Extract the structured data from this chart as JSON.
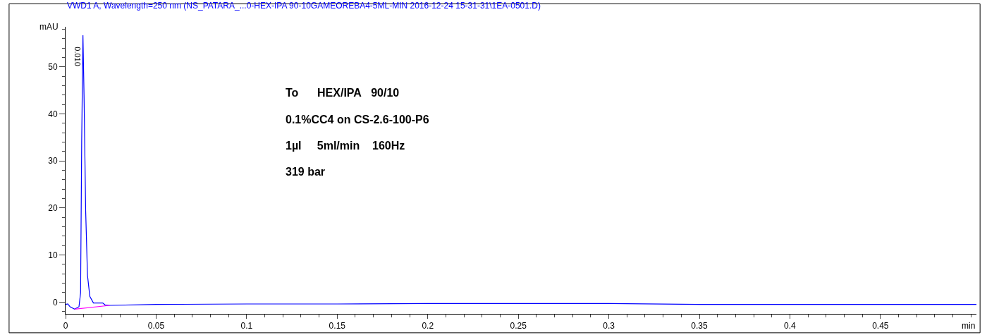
{
  "chart_data": {
    "type": "line",
    "title": "VWD1 A, Wavelength=250 nm (NS_PATARA_...0-HEX-IPA 90-10GAMEOREBA4-5ML-MIN 2016-12-24 15-31-31\\1EA-0501.D)",
    "xlabel": "min",
    "ylabel": "mAU",
    "series": [
      {
        "color": "#0000ff",
        "x": [
          0,
          0.0012,
          0.0025,
          0.005,
          0.0074,
          0.0083,
          0.0089,
          0.0096,
          0.0102,
          0.0111,
          0.0121,
          0.0134,
          0.0154,
          0.0193,
          0.0205,
          0.0218,
          0.0244,
          0.05,
          0.1,
          0.15,
          0.2,
          0.25,
          0.3,
          0.35,
          0.4,
          0.45,
          0.503
        ],
        "values": [
          -0.5,
          -0.4,
          -1,
          -1.5,
          -1,
          2,
          34,
          56.7,
          44,
          19.4,
          5.7,
          1.2,
          -0.2,
          -0.2,
          -0.2,
          -0.6,
          -0.7,
          -0.5,
          -0.4,
          -0.4,
          -0.3,
          -0.3,
          -0.3,
          -0.5,
          -0.5,
          -0.5,
          -0.5
        ]
      },
      {
        "color": "#ff00ff",
        "x": [
          0.005,
          0.0244
        ],
        "values": [
          -1.5,
          -0.7
        ]
      }
    ],
    "annotations": [
      "To      HEX/IPA   90/10",
      "0.1%CC4 on CS-2.6-100-P6",
      "1µl     5ml/min    160Hz",
      "319 bar",
      {
        "text": "0.010",
        "x": 0.01,
        "y": 56.7
      }
    ],
    "xlim": [
      0,
      0.503
    ],
    "ylim": [
      -2.5,
      58.5
    ],
    "xticks": [
      0,
      {
        "value": 0.01,
        "label": null
      },
      {
        "value": 0.02,
        "label": null
      },
      {
        "value": 0.03,
        "label": null
      },
      {
        "value": 0.04,
        "label": null
      },
      0.05,
      {
        "value": 0.06,
        "label": null
      },
      {
        "value": 0.07,
        "label": null
      },
      {
        "value": 0.08,
        "label": null
      },
      {
        "value": 0.09,
        "label": null
      },
      0.1,
      {
        "value": 0.11,
        "label": null
      },
      {
        "value": 0.12,
        "label": null
      },
      {
        "value": 0.13,
        "label": null
      },
      {
        "value": 0.14,
        "label": null
      },
      0.15,
      {
        "value": 0.16,
        "label": null
      },
      {
        "value": 0.17,
        "label": null
      },
      {
        "value": 0.18,
        "label": null
      },
      {
        "value": 0.19,
        "label": null
      },
      0.2,
      {
        "value": 0.21,
        "label": null
      },
      {
        "value": 0.22,
        "label": null
      },
      {
        "value": 0.23,
        "label": null
      },
      {
        "value": 0.24,
        "label": null
      },
      0.25,
      {
        "value": 0.26,
        "label": null
      },
      {
        "value": 0.27,
        "label": null
      },
      {
        "value": 0.28,
        "label": null
      },
      {
        "value": 0.29,
        "label": null
      },
      0.3,
      {
        "value": 0.31,
        "label": null
      },
      {
        "value": 0.32,
        "label": null
      },
      {
        "value": 0.33,
        "label": null
      },
      {
        "value": 0.34,
        "label": null
      },
      0.35,
      {
        "value": 0.36,
        "label": null
      },
      {
        "value": 0.37,
        "label": null
      },
      {
        "value": 0.38,
        "label": null
      },
      {
        "value": 0.39,
        "label": null
      },
      0.4,
      {
        "value": 0.41,
        "label": null
      },
      {
        "value": 0.42,
        "label": null
      },
      {
        "value": 0.43,
        "label": null
      },
      {
        "value": 0.44,
        "label": null
      },
      0.45,
      {
        "value": 0.46,
        "label": null
      },
      {
        "value": 0.47,
        "label": null
      },
      {
        "value": 0.48,
        "label": null
      },
      {
        "value": 0.49,
        "label": null
      },
      {
        "value": 0.5,
        "label": null
      }
    ],
    "yticks": [
      {
        "value": -2,
        "label": null
      },
      0,
      {
        "value": 2,
        "label": null
      },
      {
        "value": 4,
        "label": null
      },
      {
        "value": 6,
        "label": null
      },
      {
        "value": 8,
        "label": null
      },
      10,
      {
        "value": 12,
        "label": null
      },
      {
        "value": 14,
        "label": null
      },
      {
        "value": 16,
        "label": null
      },
      {
        "value": 18,
        "label": null
      },
      20,
      {
        "value": 22,
        "label": null
      },
      {
        "value": 24,
        "label": null
      },
      {
        "value": 26,
        "label": null
      },
      {
        "value": 28,
        "label": null
      },
      30,
      {
        "value": 32,
        "label": null
      },
      {
        "value": 34,
        "label": null
      },
      {
        "value": 36,
        "label": null
      },
      {
        "value": 38,
        "label": null
      },
      40,
      {
        "value": 42,
        "label": null
      },
      {
        "value": 44,
        "label": null
      },
      {
        "value": 46,
        "label": null
      },
      {
        "value": 48,
        "label": null
      },
      50,
      {
        "value": 52,
        "label": null
      },
      {
        "value": 54,
        "label": null
      },
      {
        "value": 56,
        "label": null
      },
      {
        "value": 58,
        "label": null
      }
    ],
    "grid": false,
    "marker": "none",
    "line_style": "solid"
  }
}
